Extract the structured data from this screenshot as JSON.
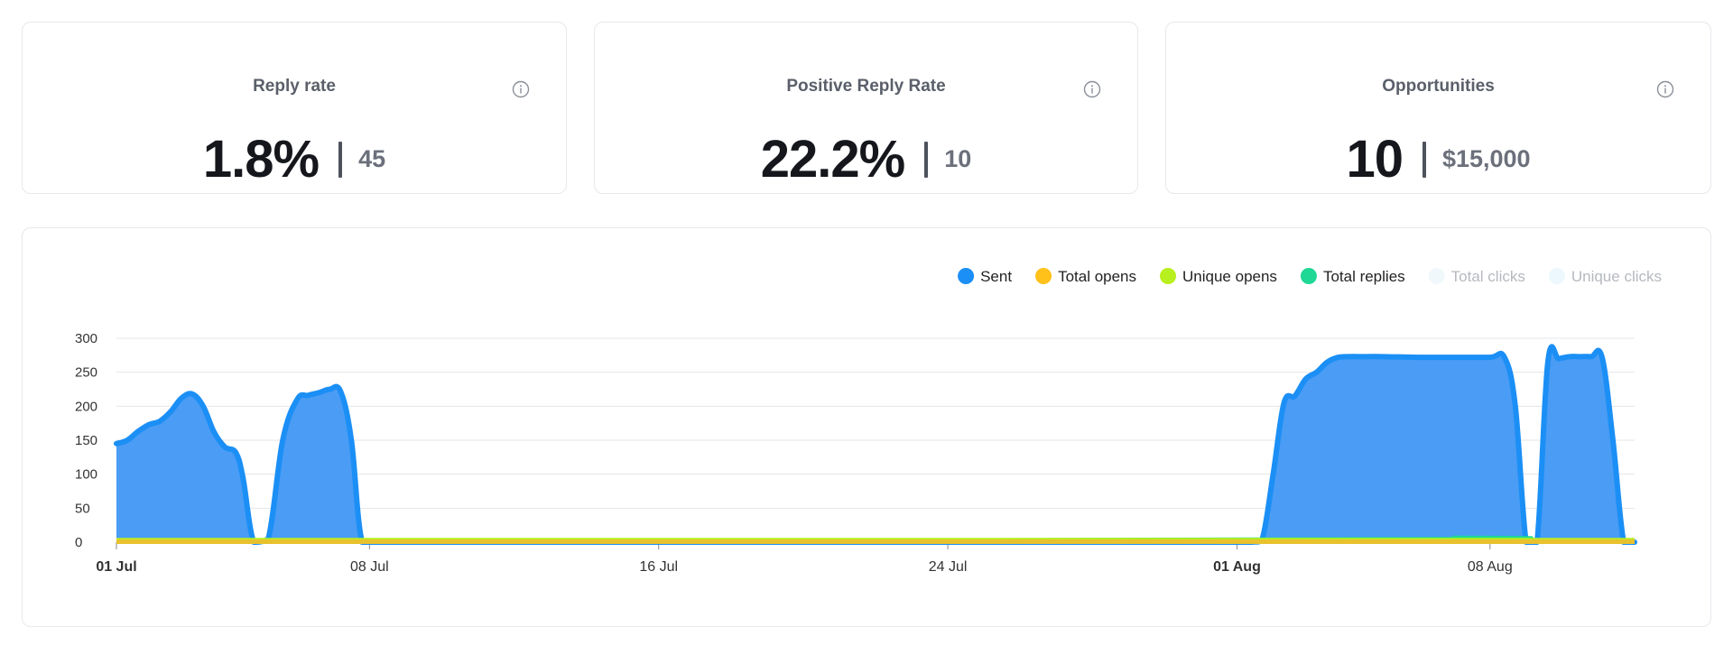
{
  "cards": [
    {
      "title": "Reply rate",
      "value": "1.8%",
      "sub": "45"
    },
    {
      "title": "Positive Reply Rate",
      "value": "22.2%",
      "sub": "10"
    },
    {
      "title": "Opportunities",
      "value": "10",
      "sub": "$15,000"
    }
  ],
  "chart_data": {
    "type": "area",
    "title": "",
    "xlabel": "",
    "ylabel": "",
    "ylim": [
      0,
      300
    ],
    "yticks": [
      "0",
      "50",
      "100",
      "150",
      "200",
      "250",
      "300"
    ],
    "xticks": [
      {
        "day": 0,
        "label": "01 Jul",
        "bold": true
      },
      {
        "day": 7,
        "label": "08 Jul",
        "bold": false
      },
      {
        "day": 15,
        "label": "16 Jul",
        "bold": false
      },
      {
        "day": 23,
        "label": "24 Jul",
        "bold": false
      },
      {
        "day": 31,
        "label": "01 Aug",
        "bold": true
      },
      {
        "day": 38,
        "label": "08 Aug",
        "bold": false
      }
    ],
    "grid": true,
    "legend_position": "top-right",
    "series": [
      {
        "name": "Sent",
        "color": "#1b8ff5",
        "active": true,
        "x": [
          0,
          0.3,
          0.6,
          0.9,
          1.2,
          1.5,
          1.8,
          2.1,
          2.4,
          2.7,
          3.0,
          3.3,
          3.5,
          3.8,
          4.2,
          4.6,
          5.0,
          5.3,
          5.6,
          5.9,
          6.2,
          6.5,
          6.8,
          7.3,
          7.8,
          8.5,
          10,
          15,
          20,
          25,
          30,
          31.4,
          31.7,
          32.0,
          32.3,
          32.6,
          32.9,
          33.2,
          33.5,
          33.8,
          34.1,
          34.4,
          35.0,
          36,
          37,
          38.0,
          38.4,
          38.7,
          39.0,
          39.3,
          39.6,
          39.9,
          40.2,
          40.5,
          40.8,
          41.1,
          41.4,
          41.7,
          42.0
        ],
        "y": [
          145,
          150,
          163,
          173,
          178,
          192,
          212,
          218,
          200,
          162,
          140,
          132,
          95,
          0,
          5,
          150,
          210,
          216,
          220,
          225,
          222,
          150,
          0,
          0,
          0,
          0,
          0,
          0,
          0,
          0,
          0,
          0,
          5,
          100,
          205,
          215,
          240,
          250,
          265,
          272,
          273,
          273,
          273,
          272,
          272,
          272,
          272,
          200,
          0,
          0,
          265,
          270,
          273,
          273,
          273,
          272,
          150,
          0,
          0
        ]
      },
      {
        "name": "Total opens",
        "color": "#ffc11a",
        "active": true,
        "x": [
          0,
          42
        ],
        "y": [
          2,
          2
        ]
      },
      {
        "name": "Unique opens",
        "color": "#b8ef1f",
        "active": true,
        "x": [
          0,
          42
        ],
        "y": [
          3,
          3
        ]
      },
      {
        "name": "Total replies",
        "color": "#1fd896",
        "active": true,
        "x": [
          0,
          36,
          37,
          38,
          42
        ],
        "y": [
          0,
          5,
          7,
          5,
          0
        ]
      },
      {
        "name": "Total clicks",
        "color": "#f0f8fc",
        "active": false,
        "x": [
          0,
          42
        ],
        "y": [
          0,
          0
        ]
      },
      {
        "name": "Unique clicks",
        "color": "#ecf8fd",
        "active": false,
        "x": [
          0,
          42
        ],
        "y": [
          0,
          0
        ]
      }
    ]
  }
}
